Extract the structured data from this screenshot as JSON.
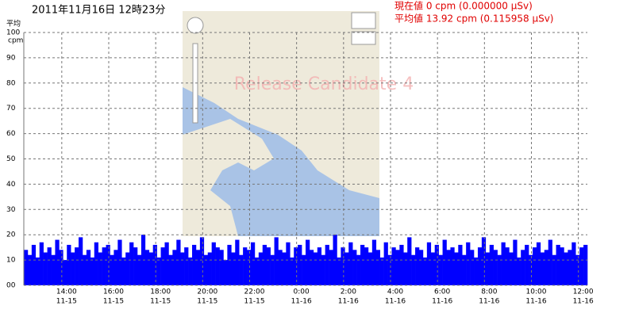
{
  "chart_data": {
    "type": "bar",
    "title": "2011年11月16日 12時23分",
    "current": "現在値 0 cpm (0.000000 μSv)",
    "average": "平均値 13.92 cpm (0.115958 μSv)",
    "watermark": "Release Candidate 4",
    "y_label": "平均",
    "y_unit": "cpm",
    "color": "#0000ff",
    "grid": true,
    "ylim": [
      0,
      100
    ],
    "yticks": [
      {
        "value": 0,
        "label": "00"
      },
      10,
      20,
      30,
      40,
      50,
      60,
      70,
      80,
      90,
      100
    ],
    "xlim": [
      0,
      1440
    ],
    "xticks": [
      {
        "value": 97,
        "label": "14:00"
      },
      {
        "value": 217,
        "label": "16:00"
      },
      {
        "value": 337,
        "label": "18:00"
      },
      {
        "value": 457,
        "label": "20:00"
      },
      {
        "value": 577,
        "label": "22:00"
      },
      {
        "value": 697,
        "label": "0:00"
      },
      {
        "value": 817,
        "label": "2:00"
      },
      {
        "value": 937,
        "label": "4:00"
      },
      {
        "value": 1057,
        "label": "6:00"
      },
      {
        "value": 1177,
        "label": "8:00"
      },
      {
        "value": 1297,
        "label": "10:00"
      },
      {
        "value": 1417,
        "label": "12:00"
      }
    ],
    "xtick_dates": [
      "11-15",
      "11-15",
      "11-15",
      "11-15",
      "11-15",
      "11-16",
      "11-16",
      "11-16",
      "11-16",
      "11-16",
      "11-16",
      "11-16"
    ],
    "values": [
      14,
      12,
      16,
      11,
      17,
      13,
      15,
      12,
      18,
      14,
      10,
      16,
      13,
      15,
      19,
      12,
      14,
      11,
      17,
      13,
      15,
      16,
      12,
      14,
      18,
      11,
      13,
      17,
      15,
      12,
      20,
      14,
      13,
      16,
      11,
      15,
      17,
      12,
      14,
      18,
      13,
      15,
      11,
      16,
      14,
      19,
      12,
      13,
      17,
      15,
      14,
      10,
      16,
      13,
      18,
      12,
      15,
      14,
      17,
      11,
      13,
      16,
      15,
      12,
      19,
      14,
      13,
      17,
      11,
      15,
      16,
      12,
      18,
      14,
      13,
      15,
      12,
      16,
      14,
      20,
      11,
      15,
      13,
      17,
      14,
      12,
      16,
      15,
      13,
      18,
      14,
      11,
      17,
      12,
      15,
      14,
      16,
      13,
      19,
      12,
      15,
      14,
      11,
      17,
      13,
      16,
      12,
      18,
      14,
      15,
      13,
      16,
      12,
      17,
      14,
      11,
      15,
      19,
      13,
      16,
      14,
      12,
      17,
      15,
      13,
      18,
      11,
      14,
      16,
      12,
      15,
      17,
      13,
      14,
      18,
      12,
      16,
      15,
      13,
      14,
      17,
      12,
      15,
      16
    ]
  }
}
